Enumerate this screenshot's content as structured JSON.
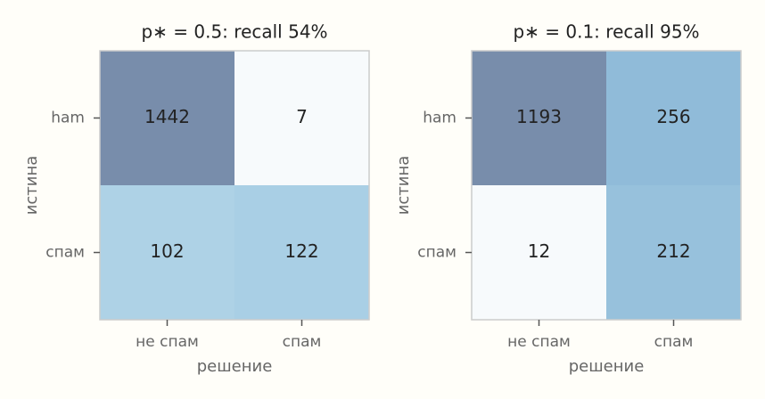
{
  "chart_data": [
    {
      "type": "heatmap",
      "title": "p∗ = 0.5: recall 54%",
      "xlabel": "решение",
      "ylabel": "истина",
      "x_categories": [
        "не спам",
        "спам"
      ],
      "y_categories": [
        "ham",
        "спам"
      ],
      "values": [
        [
          1442,
          7
        ],
        [
          102,
          122
        ]
      ],
      "colors": [
        [
          "#788dab",
          "#f7fafc"
        ],
        [
          "#aed2e6",
          "#a9cfe5"
        ]
      ]
    },
    {
      "type": "heatmap",
      "title": "p∗ = 0.1: recall 95%",
      "xlabel": "решение",
      "ylabel": "истина",
      "x_categories": [
        "не спам",
        "спам"
      ],
      "y_categories": [
        "ham",
        "спам"
      ],
      "values": [
        [
          1193,
          256
        ],
        [
          12,
          212
        ]
      ],
      "colors": [
        [
          "#788dab",
          "#90bbd9"
        ],
        [
          "#f7fafc",
          "#97c1dc"
        ]
      ]
    }
  ]
}
